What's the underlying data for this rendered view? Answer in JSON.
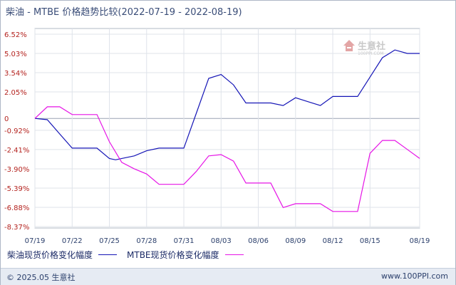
{
  "chart_data": {
    "type": "line",
    "title": "柴油 - MTBE 价格趋势比较(2022-07-19 - 2022-08-19)",
    "y_ticks": [
      "6.52%",
      "5.03%",
      "3.54%",
      "2.05%",
      "0",
      "-0.92%",
      "-2.41%",
      "-3.90%",
      "-5.39%",
      "-6.88%",
      "-8.37%"
    ],
    "y_tick_values": [
      6.52,
      5.03,
      3.54,
      2.05,
      0,
      -0.92,
      -2.41,
      -3.9,
      -5.39,
      -6.88,
      -8.37
    ],
    "ylim": [
      -8.37,
      6.52
    ],
    "x_ticks": [
      "07/19",
      "07/22",
      "07/25",
      "07/28",
      "07/31",
      "08/03",
      "08/06",
      "08/09",
      "08/12",
      "08/15",
      "08/19"
    ],
    "x_tick_days": [
      0,
      3,
      6,
      9,
      12,
      15,
      18,
      21,
      24,
      27,
      31
    ],
    "x_range_days": [
      0,
      31
    ],
    "grid": true,
    "legend_position": "bottom-left",
    "series": [
      {
        "name": "柴油现货价格变化幅度",
        "color": "#1515b6",
        "x_days": [
          0,
          1,
          2,
          3,
          4,
          5,
          6,
          6.5,
          7,
          8,
          9,
          10,
          11,
          12,
          13,
          14,
          15,
          16,
          17,
          18,
          19,
          20,
          21,
          22,
          23,
          24,
          25,
          26,
          27,
          28,
          28.5,
          29,
          30,
          31
        ],
        "values": [
          0,
          -0.1,
          -1.2,
          -2.3,
          -2.3,
          -2.3,
          -3.1,
          -3.2,
          -3.1,
          -2.9,
          -2.5,
          -2.3,
          -2.3,
          -2.3,
          0.4,
          3.1,
          3.4,
          2.6,
          1.2,
          1.2,
          1.2,
          1.0,
          1.6,
          1.3,
          1.0,
          1.7,
          1.7,
          1.7,
          3.2,
          4.7,
          5.0,
          5.3,
          5.03,
          5.03
        ]
      },
      {
        "name": "MTBE现货价格变化幅度",
        "color": "#e614e6",
        "x_days": [
          0,
          1,
          2,
          3,
          4,
          5,
          6,
          7,
          8,
          9,
          10,
          11,
          12,
          13,
          14,
          15,
          16,
          17,
          18,
          19,
          20,
          21,
          22,
          23,
          24,
          25,
          26,
          27,
          28,
          29,
          30,
          31
        ],
        "values": [
          0,
          0.9,
          0.9,
          0.3,
          0.3,
          0.3,
          -1.8,
          -3.4,
          -3.9,
          -4.3,
          -5.1,
          -5.1,
          -5.1,
          -4.1,
          -2.9,
          -2.8,
          -3.3,
          -5.0,
          -5.0,
          -5.0,
          -6.9,
          -6.6,
          -6.6,
          -6.6,
          -7.2,
          -7.2,
          -7.2,
          -2.7,
          -1.7,
          -1.7,
          -2.4,
          -3.1
        ]
      }
    ]
  },
  "footer": {
    "copyright": "© 2025.05 生意社",
    "site": "www.100PPI.com"
  },
  "watermark": {
    "name": "生意社",
    "sub": "100PPI.COM"
  }
}
